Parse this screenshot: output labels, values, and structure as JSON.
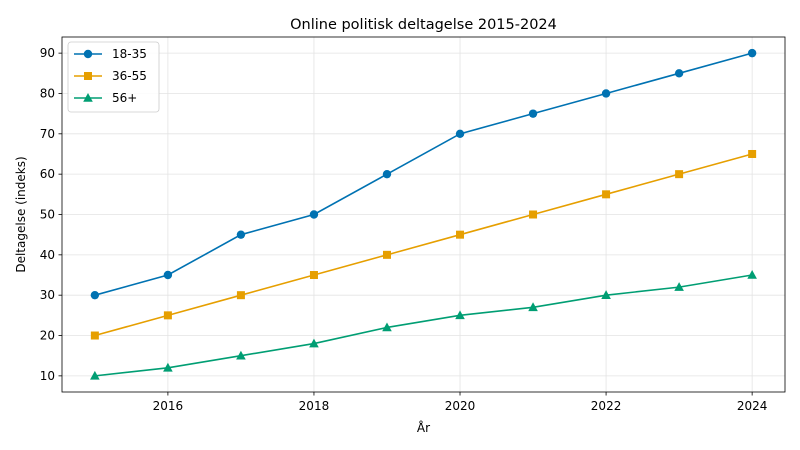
{
  "chart_data": {
    "type": "line",
    "title": "Online politisk deltagelse 2015-2024",
    "xlabel": "År",
    "ylabel": "Deltagelse (indeks)",
    "x": [
      2015,
      2016,
      2017,
      2018,
      2019,
      2020,
      2021,
      2022,
      2023,
      2024
    ],
    "xlim": [
      2014.55,
      2024.45
    ],
    "ylim": [
      6,
      94
    ],
    "xticks": [
      2016,
      2018,
      2020,
      2022,
      2024
    ],
    "yticks": [
      10,
      20,
      30,
      40,
      50,
      60,
      70,
      80,
      90
    ],
    "grid": true,
    "legend_position": "top-left",
    "series": [
      {
        "name": "18-35",
        "color": "#0072b2",
        "marker": "circle",
        "values": [
          30,
          35,
          45,
          50,
          60,
          70,
          75,
          80,
          85,
          90
        ]
      },
      {
        "name": "36-55",
        "color": "#e69f00",
        "marker": "square",
        "values": [
          20,
          25,
          30,
          35,
          40,
          45,
          50,
          55,
          60,
          65
        ]
      },
      {
        "name": "56+",
        "color": "#009e73",
        "marker": "triangle",
        "values": [
          10,
          12,
          15,
          18,
          22,
          25,
          27,
          30,
          32,
          35
        ]
      }
    ]
  }
}
